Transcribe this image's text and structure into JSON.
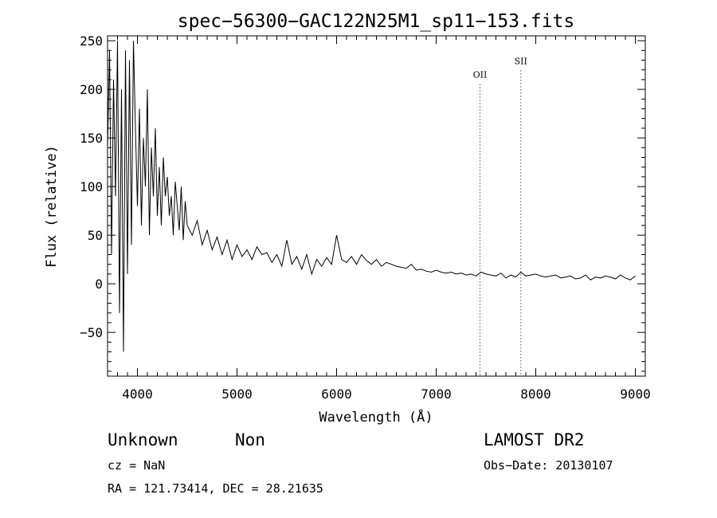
{
  "chart_data": {
    "type": "line",
    "title": "spec−56300−GAC122N25M1_sp11−153.fits",
    "xlabel": "Wavelength (Å)",
    "ylabel": "Flux (relative)",
    "xlim": [
      3700,
      9100
    ],
    "ylim": [
      -95,
      255
    ],
    "x_ticks": [
      4000,
      5000,
      6000,
      7000,
      8000,
      9000
    ],
    "x_tick_labels": [
      "4000",
      "5000",
      "6000",
      "7000",
      "8000",
      "9000"
    ],
    "y_ticks": [
      -50,
      0,
      50,
      100,
      150,
      200,
      250
    ],
    "y_tick_labels": [
      "−50",
      "0",
      "50",
      "100",
      "150",
      "200",
      "250"
    ],
    "lines": [
      {
        "label": "OII",
        "wavelength": 7440,
        "label_flux": 212
      },
      {
        "label": "SII",
        "wavelength": 7850,
        "label_flux": 226
      }
    ],
    "series": [
      {
        "name": "flux",
        "x": [
          3700,
          3720,
          3740,
          3760,
          3780,
          3800,
          3820,
          3840,
          3860,
          3880,
          3900,
          3920,
          3940,
          3960,
          3980,
          4000,
          4020,
          4040,
          4060,
          4080,
          4100,
          4120,
          4140,
          4160,
          4180,
          4200,
          4220,
          4240,
          4260,
          4280,
          4300,
          4320,
          4340,
          4360,
          4380,
          4400,
          4420,
          4440,
          4460,
          4480,
          4500,
          4550,
          4600,
          4650,
          4700,
          4750,
          4800,
          4850,
          4900,
          4950,
          5000,
          5050,
          5100,
          5150,
          5200,
          5250,
          5300,
          5350,
          5400,
          5450,
          5500,
          5550,
          5600,
          5650,
          5700,
          5750,
          5800,
          5850,
          5900,
          5950,
          6000,
          6050,
          6100,
          6150,
          6200,
          6250,
          6300,
          6350,
          6400,
          6450,
          6500,
          6550,
          6600,
          6650,
          6700,
          6750,
          6800,
          6850,
          6900,
          6950,
          7000,
          7050,
          7100,
          7150,
          7200,
          7250,
          7300,
          7350,
          7400,
          7450,
          7500,
          7550,
          7600,
          7650,
          7700,
          7750,
          7800,
          7850,
          7900,
          7950,
          8000,
          8050,
          8100,
          8150,
          8200,
          8250,
          8300,
          8350,
          8400,
          8450,
          8500,
          8550,
          8600,
          8650,
          8700,
          8750,
          8800,
          8850,
          8900,
          8950,
          9000
        ],
        "y": [
          140,
          240,
          30,
          210,
          90,
          250,
          -30,
          200,
          -70,
          240,
          10,
          230,
          40,
          250,
          160,
          80,
          180,
          60,
          150,
          100,
          200,
          50,
          140,
          90,
          160,
          70,
          120,
          60,
          130,
          90,
          110,
          70,
          90,
          50,
          105,
          80,
          55,
          100,
          45,
          85,
          60,
          50,
          65,
          40,
          55,
          35,
          48,
          30,
          45,
          25,
          40,
          28,
          35,
          25,
          38,
          30,
          32,
          22,
          30,
          18,
          45,
          20,
          28,
          15,
          30,
          10,
          25,
          18,
          27,
          20,
          50,
          25,
          22,
          28,
          20,
          30,
          24,
          20,
          25,
          18,
          22,
          20,
          18,
          17,
          16,
          20,
          14,
          15,
          13,
          12,
          14,
          12,
          11,
          12,
          10,
          11,
          9,
          10,
          8,
          12,
          10,
          9,
          8,
          11,
          6,
          9,
          7,
          12,
          8,
          9,
          10,
          8,
          7,
          8,
          9,
          6,
          7,
          8,
          5,
          6,
          9,
          4,
          7,
          6,
          8,
          7,
          5,
          9,
          6,
          4,
          8
        ]
      }
    ]
  },
  "footer": {
    "class_label": "Unknown",
    "subclass_label": "Non",
    "survey_label": "LAMOST DR2",
    "cz_text": "cz = NaN",
    "date_text": "Obs−Date: 20130107",
    "coord_text": "RA = 121.73414, DEC =  28.21635"
  }
}
